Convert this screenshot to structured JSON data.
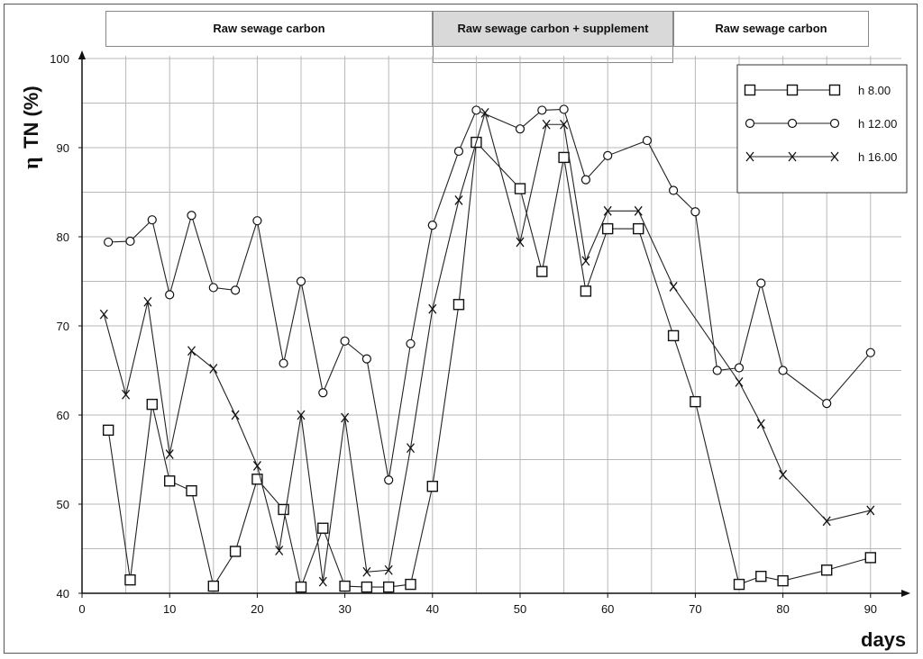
{
  "chart_data": {
    "type": "line",
    "xlabel": "days",
    "ylabel_symbol": "η",
    "ylabel_text": "TN (%)",
    "xlim": [
      0,
      95
    ],
    "ylim": [
      40,
      100
    ],
    "x_ticks": [
      0,
      10,
      20,
      30,
      40,
      50,
      60,
      70,
      80,
      90
    ],
    "y_ticks": [
      40,
      50,
      60,
      70,
      80,
      90,
      100
    ],
    "grid": true,
    "legend_position": "top-right",
    "phases": [
      {
        "label": "Raw sewage carbon",
        "x_start": 3,
        "x_end": 40
      },
      {
        "label": "Raw sewage carbon + supplement",
        "x_start": 40,
        "x_end": 67.5
      },
      {
        "label": "Raw sewage carbon",
        "x_start": 67.5,
        "x_end": 90
      }
    ],
    "series": [
      {
        "name": "h  8.00",
        "marker": "square",
        "x": [
          3,
          5.5,
          8,
          10,
          12.5,
          15,
          17.5,
          20,
          23,
          25,
          27.5,
          30,
          32.5,
          35,
          37.5,
          40,
          43,
          45,
          50,
          52.5,
          55,
          57.5,
          60,
          63.5,
          67.5,
          70,
          75,
          77.5,
          80,
          85,
          90
        ],
        "values": [
          58.3,
          41.5,
          61.2,
          52.6,
          51.5,
          40.8,
          44.7,
          52.8,
          49.4,
          40.7,
          47.3,
          40.8,
          40.7,
          40.7,
          41,
          52,
          72.4,
          90.6,
          85.4,
          76.1,
          88.9,
          73.9,
          80.9,
          80.9,
          68.9,
          61.5,
          41,
          41.9,
          41.4,
          42.6,
          44
        ]
      },
      {
        "name": "h 12.00",
        "marker": "circle",
        "x": [
          3,
          5.5,
          8,
          10,
          12.5,
          15,
          17.5,
          20,
          23,
          25,
          27.5,
          30,
          32.5,
          35,
          37.5,
          40,
          43,
          45,
          50,
          52.5,
          55,
          57.5,
          60,
          64.5,
          67.5,
          70,
          72.5,
          75,
          77.5,
          80,
          85,
          90
        ],
        "values": [
          79.4,
          79.5,
          81.9,
          73.5,
          82.4,
          74.3,
          74,
          81.8,
          65.8,
          75,
          62.5,
          68.3,
          66.3,
          52.7,
          68,
          81.3,
          89.6,
          94.2,
          92.1,
          94.2,
          94.3,
          86.4,
          89.1,
          90.8,
          85.2,
          82.8,
          65,
          65.3,
          74.8,
          65,
          61.3,
          67
        ]
      },
      {
        "name": "h 16.00",
        "marker": "x",
        "x": [
          2.5,
          5,
          7.5,
          10,
          12.5,
          15,
          17.5,
          20,
          22.5,
          25,
          27.5,
          30,
          32.5,
          35,
          37.5,
          40,
          43,
          46,
          50,
          53,
          55,
          57.5,
          60,
          63.5,
          67.5,
          75,
          77.5,
          80,
          85,
          90
        ],
        "values": [
          71.3,
          62.3,
          72.7,
          55.6,
          67.2,
          65.2,
          60,
          54.3,
          44.8,
          60,
          41.3,
          59.7,
          42.4,
          42.6,
          56.3,
          71.9,
          84.1,
          93.9,
          79.4,
          92.6,
          92.6,
          77.3,
          82.9,
          82.9,
          74.4,
          63.7,
          59,
          53.3,
          48.1,
          49.3
        ]
      }
    ]
  }
}
